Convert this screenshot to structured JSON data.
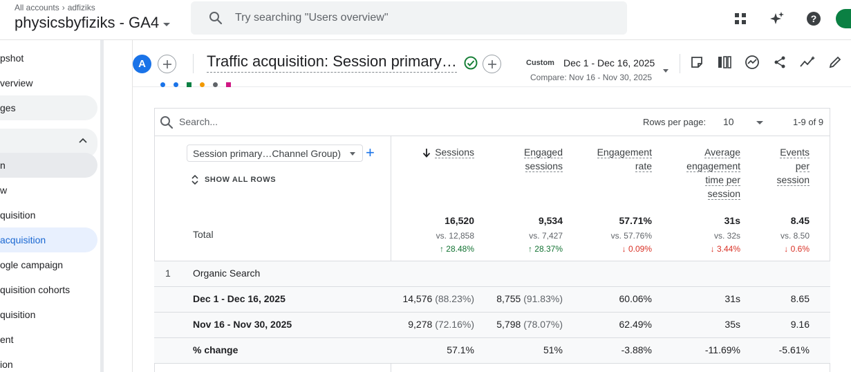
{
  "header": {
    "breadcrumb_root": "All accounts",
    "breadcrumb_account": "adfiziks",
    "property_name": "physicsbyfiziks - GA4",
    "search_placeholder": "Try searching \"Users overview\""
  },
  "sidenav": {
    "items": [
      {
        "label": "pshot"
      },
      {
        "label": "verview"
      },
      {
        "label": "ges"
      },
      {
        "label": ""
      },
      {
        "label": "n"
      },
      {
        "label": "w"
      },
      {
        "label": "quisition"
      },
      {
        "label": "acquisition"
      },
      {
        "label": "ogle campaign"
      },
      {
        "label": "quisition cohorts"
      },
      {
        "label": "quisition"
      },
      {
        "label": "ent"
      },
      {
        "label": "ion"
      }
    ]
  },
  "report": {
    "segment_letter": "A",
    "title": "Traffic acquisition: Session primary channel group (Default Channel Group)",
    "date_mode": "Custom",
    "date_range": "Dec 1 - Dec 16, 2025",
    "compare_range": "Compare: Nov 16 - Nov 30, 2025"
  },
  "table": {
    "search_placeholder": "Search...",
    "rows_per_page_label": "Rows per page:",
    "rows_per_page_value": "10",
    "pagination": "1-9 of 9",
    "dimension_label": "Session primary…Channel Group)",
    "show_all_rows": "SHOW ALL ROWS",
    "columns": [
      {
        "lines": [
          "Sessions"
        ]
      },
      {
        "lines": [
          "Engaged",
          "sessions"
        ]
      },
      {
        "lines": [
          "Engagement",
          "rate"
        ]
      },
      {
        "lines": [
          "Average",
          "engagement",
          "time per",
          "session"
        ]
      },
      {
        "lines": [
          "Events",
          "per",
          "session"
        ]
      }
    ],
    "total": {
      "label": "Total",
      "values": [
        "16,520",
        "9,534",
        "57.71%",
        "31s",
        "8.45"
      ],
      "vs": [
        "vs. 12,858",
        "vs. 7,427",
        "vs. 57.76%",
        "vs. 32s",
        "vs. 8.50"
      ],
      "change": [
        "28.48%",
        "28.37%",
        "0.09%",
        "3.44%",
        "0.6%"
      ],
      "change_dir": [
        "up",
        "up",
        "down",
        "down",
        "down"
      ]
    },
    "group": {
      "index": "1",
      "name": "Organic Search"
    },
    "rows": [
      {
        "label": "Dec 1 - Dec 16, 2025",
        "values": [
          "14,576",
          "8,755",
          "60.06%",
          "31s",
          "8.65"
        ],
        "pct": [
          "(88.23%)",
          "(91.83%)",
          "",
          "",
          ""
        ]
      },
      {
        "label": "Nov 16 - Nov 30, 2025",
        "values": [
          "9,278",
          "5,798",
          "62.49%",
          "35s",
          "9.16"
        ],
        "pct": [
          "(72.16%)",
          "(78.07%)",
          "",
          "",
          ""
        ]
      },
      {
        "label": "% change",
        "values": [
          "57.1%",
          "51%",
          "-3.88%",
          "-11.69%",
          "-5.61%"
        ],
        "pct": [
          "",
          "",
          "",
          "",
          ""
        ]
      }
    ]
  },
  "colors": {
    "accent": "#1a73e8",
    "up": "#137333",
    "down": "#d93025",
    "active_nav": "#e8f0fe"
  }
}
